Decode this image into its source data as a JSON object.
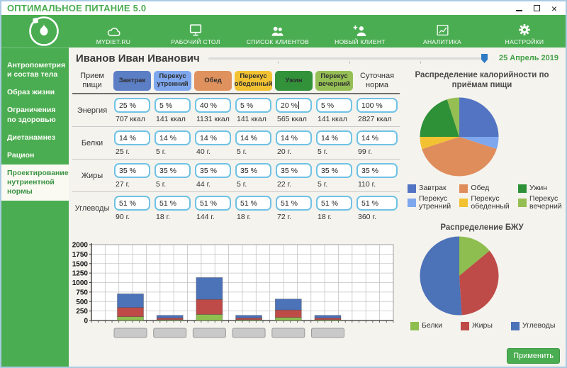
{
  "window": {
    "title": "ОПТИМАЛЬНОЕ ПИТАНИЕ 5.0"
  },
  "nav": {
    "items": [
      {
        "label": "MYDIET.RU",
        "icon": "cloud-icon"
      },
      {
        "label": "РАБОЧИЙ СТОЛ",
        "icon": "desktop-icon"
      },
      {
        "label": "СПИСОК КЛИЕНТОВ",
        "icon": "clients-icon"
      },
      {
        "label": "НОВЫЙ КЛИЕНТ",
        "icon": "add-user-icon"
      },
      {
        "label": "АНАЛИТИКА",
        "icon": "analytics-icon"
      },
      {
        "label": "НАСТРОЙКИ",
        "icon": "gear-icon"
      }
    ]
  },
  "sidebar": {
    "items": [
      {
        "label": "Антропометрия и состав тела",
        "selected": false
      },
      {
        "label": "Образ жизни",
        "selected": false
      },
      {
        "label": "Ограничения по здоровью",
        "selected": false
      },
      {
        "label": "Диетанамнез",
        "selected": false
      },
      {
        "label": "Рацион",
        "selected": false
      },
      {
        "label": "Проектирование нутриентной нормы",
        "selected": true
      }
    ]
  },
  "header": {
    "patient_name": "Иванов Иван Иванович",
    "date": "25 Апрель 2019"
  },
  "table": {
    "corner_label": "Прием пищи",
    "total_label": "Суточная норма",
    "meals": [
      {
        "label": "Завтрак",
        "color": "#5B7EC5"
      },
      {
        "label": "Перекус утренний",
        "color": "#7EA7EE"
      },
      {
        "label": "Обед",
        "color": "#E0925E"
      },
      {
        "label": "Перекус обеденный",
        "color": "#F2C233"
      },
      {
        "label": "Ужин",
        "color": "#31923A"
      },
      {
        "label": "Перекус вечерний",
        "color": "#95BF55"
      }
    ],
    "rows": [
      {
        "label": "Энергия",
        "percents": [
          "25 %",
          "5 %",
          "40 %",
          "5 %",
          "20 %",
          "5 %",
          "100 %"
        ],
        "values": [
          "707 ккал",
          "141 ккал",
          "1131 ккал",
          "141 ккал",
          "565 ккал",
          "141 ккал",
          "2827 ккал"
        ]
      },
      {
        "label": "Белки",
        "percents": [
          "14 %",
          "14 %",
          "14 %",
          "14 %",
          "14 %",
          "14 %",
          "14 %"
        ],
        "values": [
          "25 г.",
          "5 г.",
          "40 г.",
          "5 г.",
          "20 г.",
          "5 г.",
          "99 г."
        ]
      },
      {
        "label": "Жиры",
        "percents": [
          "35 %",
          "35 %",
          "35 %",
          "35 %",
          "35 %",
          "35 %",
          "35 %"
        ],
        "values": [
          "27 г.",
          "5 г.",
          "44 г.",
          "5 г.",
          "22 г.",
          "5 г.",
          "110 г."
        ]
      },
      {
        "label": "Углеводы",
        "percents": [
          "51 %",
          "51 %",
          "51 %",
          "51 %",
          "51 %",
          "51 %",
          "51 %"
        ],
        "values": [
          "90 г.",
          "18 г.",
          "144 г.",
          "18 г.",
          "72 г.",
          "18 г.",
          "360 г."
        ]
      }
    ],
    "caret": {
      "row": 0,
      "col": 4
    }
  },
  "chart_data": [
    {
      "type": "bar",
      "stacked": true,
      "title": "",
      "categories": [
        "Завтрак",
        "Перекус утренний",
        "Обед",
        "Перекус обеденный",
        "Ужин",
        "Перекус вечерний"
      ],
      "series": [
        {
          "name": "Белки",
          "color": "#8DBE4F",
          "values": [
            100,
            20,
            160,
            20,
            80,
            20
          ]
        },
        {
          "name": "Жиры",
          "color": "#BE4B48",
          "values": [
            243,
            45,
            396,
            45,
            198,
            45
          ]
        },
        {
          "name": "Углеводы",
          "color": "#4C72B8",
          "values": [
            360,
            72,
            576,
            72,
            288,
            72
          ]
        }
      ],
      "ylim": [
        0,
        2000
      ],
      "ytick_step": 250,
      "grid": true,
      "legend_position": "none"
    },
    {
      "type": "pie",
      "title": "Распределение калорийности по приёмам пищи",
      "labels": [
        "Завтрак",
        "Перекус утренний",
        "Обед",
        "Перекус обеденный",
        "Ужин",
        "Перекус вечерний"
      ],
      "values": [
        25,
        5,
        40,
        5,
        20,
        5
      ],
      "colors": [
        "#5374C2",
        "#7EA7EE",
        "#DF8D5B",
        "#F2C232",
        "#2E9138",
        "#95BF53"
      ],
      "legend_position": "bottom",
      "legend_columns": 3
    },
    {
      "type": "pie",
      "title": "Распределение БЖУ",
      "labels": [
        "Белки",
        "Жиры",
        "Углеводы"
      ],
      "values": [
        14,
        35,
        51
      ],
      "colors": [
        "#8DBE4F",
        "#BE4B48",
        "#4C72B8"
      ],
      "legend_position": "bottom"
    }
  ],
  "apply_button": {
    "label": "Применить"
  },
  "colors": {
    "accent_green": "#4BAD52",
    "background": "#F5F3EE",
    "input_border": "#6FC2E5",
    "window_border": "#A9CBE2",
    "slider_handle": "#2E7BC4",
    "date_text": "#43A047"
  }
}
